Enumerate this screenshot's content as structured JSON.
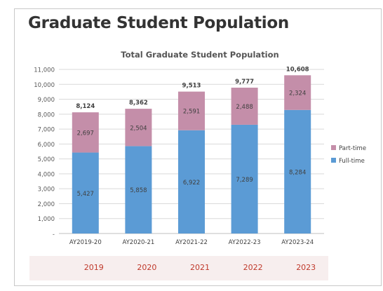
{
  "page": {
    "title": "Graduate Student Population"
  },
  "chart_data": {
    "type": "bar",
    "stacked": true,
    "title": "Total Graduate Student Population",
    "xlabel": "",
    "ylabel": "",
    "categories": [
      "AY2019-20",
      "AY2020-21",
      "AY2021-22",
      "AY2022-23",
      "AY2023-24"
    ],
    "series": [
      {
        "name": "Full-time",
        "color": "#5b9bd5",
        "values": [
          5427,
          5858,
          6922,
          7289,
          8284
        ],
        "labels": [
          "5,427",
          "5,858",
          "6,922",
          "7,289",
          "8,284"
        ]
      },
      {
        "name": "Part-time",
        "color": "#c48ea9",
        "values": [
          2697,
          2504,
          2591,
          2488,
          2324
        ],
        "labels": [
          "2,697",
          "2,504",
          "2,591",
          "2,488",
          "2,324"
        ]
      }
    ],
    "totals": [
      8124,
      8362,
      9513,
      9777,
      10608
    ],
    "total_labels": [
      "8,124",
      "8,362",
      "9,513",
      "9,777",
      "10,608"
    ],
    "ylim": [
      0,
      11000
    ],
    "yticks": [
      0,
      1000,
      2000,
      3000,
      4000,
      5000,
      6000,
      7000,
      8000,
      9000,
      10000,
      11000
    ],
    "ytick_labels": [
      "-",
      "1,000",
      "2,000",
      "3,000",
      "4,000",
      "5,000",
      "6,000",
      "7,000",
      "8,000",
      "9,000",
      "10,000",
      "11,000"
    ],
    "grid": true,
    "legend_position": "right"
  },
  "years": [
    "2019",
    "2020",
    "2021",
    "2022",
    "2023"
  ]
}
